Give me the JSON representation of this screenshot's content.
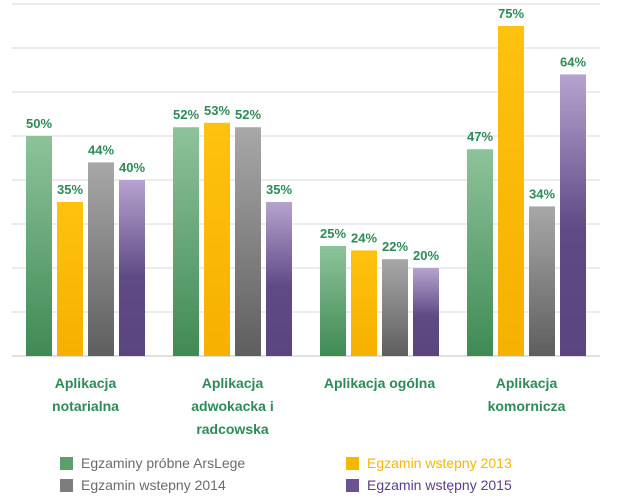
{
  "chart_data": {
    "type": "bar",
    "categories": [
      [
        "Aplikacja",
        "notarialna"
      ],
      [
        "Aplikacja",
        "adwokacka i",
        "radcowska"
      ],
      [
        "Aplikacja ogólna"
      ],
      [
        "Aplikacja",
        "komornicza"
      ]
    ],
    "ylim": [
      0,
      80
    ],
    "grid": true,
    "data_label_color": "#2e8b57",
    "legend_position": "bottom",
    "series": [
      {
        "name": "Egzaminy próbne ArsLege",
        "values": [
          50,
          52,
          25,
          47
        ],
        "labels": [
          "50%",
          "52%",
          "25%",
          "47%"
        ],
        "color": "#5e9e6e",
        "legend_text_color": "#6b6b6b"
      },
      {
        "name": "Egzamin wstepny 2013",
        "values": [
          35,
          53,
          24,
          75
        ],
        "labels": [
          "35%",
          "53%",
          "24%",
          "75%"
        ],
        "color": "#f5b800",
        "legend_text_color": "#f5b800"
      },
      {
        "name": "Egzamin wstepny 2014",
        "values": [
          44,
          52,
          22,
          34
        ],
        "labels": [
          "44%",
          "52%",
          "22%",
          "34%"
        ],
        "color": "#7d7d7d",
        "legend_text_color": "#6b6b6b"
      },
      {
        "name": "Egzamin wstępny 2015",
        "values": [
          40,
          35,
          20,
          64
        ],
        "labels": [
          "40%",
          "35%",
          "20%",
          "64%"
        ],
        "color": "#6a5490",
        "legend_text_color": "#5a3f86"
      }
    ]
  }
}
